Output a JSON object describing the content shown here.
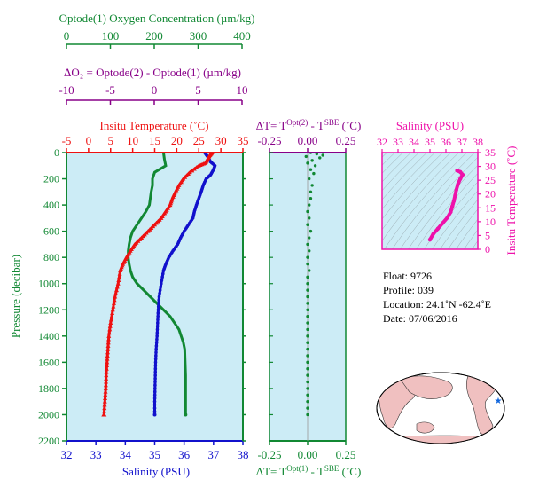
{
  "header": {
    "oxygen_axis_label": "Optode(1) Oxygen Concentration  (µm/kg)",
    "oxygen_ticks": [
      "0",
      "100",
      "200",
      "300",
      "400"
    ],
    "delta_o2_label": "ΔO₂ = Optode(2) - Optode(1)   (µm/kg)",
    "delta_o2_ticks": [
      "-10",
      "-5",
      "0",
      "5",
      "10"
    ]
  },
  "panel_main": {
    "top_label": "Insitu Temperature (˚C)",
    "top_ticks": [
      "-5",
      "0",
      "5",
      "10",
      "15",
      "20",
      "25",
      "30",
      "35"
    ],
    "bottom_label": "Salinity (PSU)",
    "bottom_ticks": [
      "32",
      "33",
      "34",
      "35",
      "36",
      "37",
      "38"
    ],
    "y_label": "Pressure (decibar)",
    "y_ticks": [
      "0",
      "200",
      "400",
      "600",
      "800",
      "1000",
      "1200",
      "1400",
      "1600",
      "1800",
      "2000",
      "2200"
    ]
  },
  "panel_delta_t": {
    "top_label": "ΔT= T^Opt(2) - T^SBE (˚C)",
    "bottom_label": "ΔT= T^Opt(1) - T^SBE (˚C)",
    "ticks": [
      "-0.25",
      "0.00",
      "0.25"
    ]
  },
  "panel_ts": {
    "top_label": "Salinity (PSU)",
    "x_ticks": [
      "32",
      "33",
      "34",
      "35",
      "36",
      "37",
      "38"
    ],
    "y_label": "Insitu Temperature (˚C)",
    "y_ticks": [
      "0",
      "5",
      "10",
      "15",
      "20",
      "25",
      "30",
      "35"
    ]
  },
  "float_info": {
    "float": "Float:  9726",
    "profile": "Profile:  039",
    "location": "Location:  24.1˚N  -62.4˚E",
    "date": "Date:  07/06/2016"
  },
  "colors": {
    "background": "#ccecf6",
    "temperature": "#ee1111",
    "salinity": "#1111cc",
    "oxygen": "#118833",
    "ts_curve": "#ee11aa",
    "purple_axis": "#880088",
    "land": "#f0c0c0"
  },
  "chart_data": [
    {
      "type": "line",
      "name": "Insitu Temperature vs Pressure",
      "x_unit": "˚C",
      "xlim": [
        -5,
        35
      ],
      "ylim": [
        2200,
        0
      ],
      "points": [
        [
          28,
          0
        ],
        [
          27.5,
          20
        ],
        [
          27,
          50
        ],
        [
          26.5,
          80
        ],
        [
          25,
          100
        ],
        [
          23,
          150
        ],
        [
          21.5,
          200
        ],
        [
          20.5,
          250
        ],
        [
          19.7,
          300
        ],
        [
          19,
          350
        ],
        [
          18.5,
          400
        ],
        [
          17.5,
          450
        ],
        [
          16.5,
          500
        ],
        [
          15,
          550
        ],
        [
          13.5,
          600
        ],
        [
          12,
          650
        ],
        [
          10.5,
          700
        ],
        [
          9.5,
          750
        ],
        [
          8.6,
          800
        ],
        [
          7.8,
          850
        ],
        [
          7.2,
          900
        ],
        [
          6.7,
          1000
        ],
        [
          6.0,
          1100
        ],
        [
          5.5,
          1200
        ],
        [
          5.0,
          1300
        ],
        [
          4.6,
          1400
        ],
        [
          4.4,
          1500
        ],
        [
          4.2,
          1600
        ],
        [
          4.0,
          1700
        ],
        [
          3.9,
          1800
        ],
        [
          3.7,
          1900
        ],
        [
          3.5,
          2000
        ]
      ]
    },
    {
      "type": "line",
      "name": "Salinity vs Pressure",
      "x_unit": "PSU",
      "xlim": [
        32,
        38
      ],
      "ylim": [
        2200,
        0
      ],
      "points": [
        [
          36.7,
          0
        ],
        [
          36.8,
          30
        ],
        [
          36.9,
          70
        ],
        [
          37.05,
          100
        ],
        [
          37.0,
          130
        ],
        [
          36.9,
          170
        ],
        [
          36.75,
          200
        ],
        [
          36.65,
          250
        ],
        [
          36.58,
          300
        ],
        [
          36.5,
          350
        ],
        [
          36.42,
          400
        ],
        [
          36.35,
          450
        ],
        [
          36.3,
          500
        ],
        [
          36.15,
          550
        ],
        [
          36.0,
          600
        ],
        [
          35.88,
          650
        ],
        [
          35.78,
          700
        ],
        [
          35.62,
          750
        ],
        [
          35.48,
          800
        ],
        [
          35.38,
          850
        ],
        [
          35.3,
          900
        ],
        [
          35.22,
          1000
        ],
        [
          35.15,
          1100
        ],
        [
          35.12,
          1200
        ],
        [
          35.1,
          1300
        ],
        [
          35.08,
          1400
        ],
        [
          35.05,
          1500
        ],
        [
          35.03,
          1600
        ],
        [
          35.02,
          1700
        ],
        [
          35.01,
          1800
        ],
        [
          35.0,
          1900
        ],
        [
          35.0,
          2000
        ]
      ]
    },
    {
      "type": "line",
      "name": "Optode(1) Oxygen Concentration vs Pressure",
      "x_unit": "µm/kg",
      "xlim": [
        0,
        400
      ],
      "ylim": [
        2200,
        0
      ],
      "points": [
        [
          220,
          0
        ],
        [
          222,
          50
        ],
        [
          225,
          100
        ],
        [
          200,
          150
        ],
        [
          195,
          200
        ],
        [
          195,
          250
        ],
        [
          192,
          300
        ],
        [
          190,
          350
        ],
        [
          188,
          400
        ],
        [
          180,
          450
        ],
        [
          170,
          500
        ],
        [
          160,
          550
        ],
        [
          150,
          600
        ],
        [
          145,
          650
        ],
        [
          142,
          700
        ],
        [
          140,
          750
        ],
        [
          140,
          800
        ],
        [
          142,
          850
        ],
        [
          145,
          900
        ],
        [
          150,
          950
        ],
        [
          160,
          1000
        ],
        [
          175,
          1050
        ],
        [
          190,
          1100
        ],
        [
          205,
          1150
        ],
        [
          220,
          1200
        ],
        [
          235,
          1250
        ],
        [
          245,
          1300
        ],
        [
          255,
          1350
        ],
        [
          260,
          1400
        ],
        [
          265,
          1450
        ],
        [
          268,
          1500
        ],
        [
          269,
          1600
        ],
        [
          270,
          1700
        ],
        [
          270,
          1800
        ],
        [
          270,
          1900
        ],
        [
          270,
          2000
        ]
      ]
    },
    {
      "type": "scatter",
      "name": "ΔT Opt(1) - SBE vs Pressure",
      "x_unit": "˚C",
      "xlim": [
        -0.25,
        0.25
      ],
      "ylim": [
        2200,
        0
      ],
      "points": [
        [
          0.02,
          0
        ],
        [
          0.06,
          10
        ],
        [
          0.1,
          20
        ],
        [
          -0.01,
          30
        ],
        [
          0.08,
          40
        ],
        [
          0.03,
          60
        ],
        [
          0.0,
          80
        ],
        [
          0.05,
          100
        ],
        [
          0.02,
          130
        ],
        [
          0.04,
          160
        ],
        [
          0.01,
          200
        ],
        [
          0.03,
          250
        ],
        [
          0.02,
          300
        ],
        [
          0.02,
          350
        ],
        [
          0.01,
          400
        ],
        [
          0.0,
          450
        ],
        [
          0.01,
          500
        ],
        [
          0.0,
          550
        ],
        [
          0.02,
          600
        ],
        [
          0.01,
          650
        ],
        [
          0.0,
          700
        ],
        [
          0.01,
          750
        ],
        [
          0.0,
          800
        ],
        [
          0.0,
          850
        ],
        [
          0.01,
          900
        ],
        [
          0.0,
          950
        ],
        [
          0.0,
          1000
        ],
        [
          0.0,
          1050
        ],
        [
          0.0,
          1100
        ],
        [
          0.0,
          1150
        ],
        [
          0.0,
          1200
        ],
        [
          0.0,
          1250
        ],
        [
          0.0,
          1300
        ],
        [
          0.0,
          1350
        ],
        [
          0.0,
          1400
        ],
        [
          0.0,
          1450
        ],
        [
          0.0,
          1500
        ],
        [
          0.0,
          1550
        ],
        [
          0.0,
          1600
        ],
        [
          0.0,
          1650
        ],
        [
          0.0,
          1700
        ],
        [
          0.0,
          1750
        ],
        [
          0.0,
          1800
        ],
        [
          0.0,
          1850
        ],
        [
          0.0,
          1900
        ],
        [
          0.0,
          1950
        ],
        [
          0.0,
          2000
        ]
      ]
    },
    {
      "type": "line",
      "name": "T-S diagram",
      "x_unit": "PSU",
      "y_unit": "˚C",
      "xlim": [
        32,
        38
      ],
      "ylim": [
        0,
        35
      ],
      "points": [
        [
          35.0,
          3.5
        ],
        [
          35.2,
          5.5
        ],
        [
          35.5,
          7.5
        ],
        [
          35.8,
          9.5
        ],
        [
          36.1,
          11.5
        ],
        [
          36.3,
          13.5
        ],
        [
          36.4,
          15.5
        ],
        [
          36.5,
          17.5
        ],
        [
          36.58,
          19.5
        ],
        [
          36.65,
          21.5
        ],
        [
          36.75,
          23.5
        ],
        [
          36.9,
          25.5
        ],
        [
          37.05,
          27.0
        ],
        [
          36.9,
          28.0
        ],
        [
          36.7,
          28.5
        ]
      ]
    }
  ]
}
